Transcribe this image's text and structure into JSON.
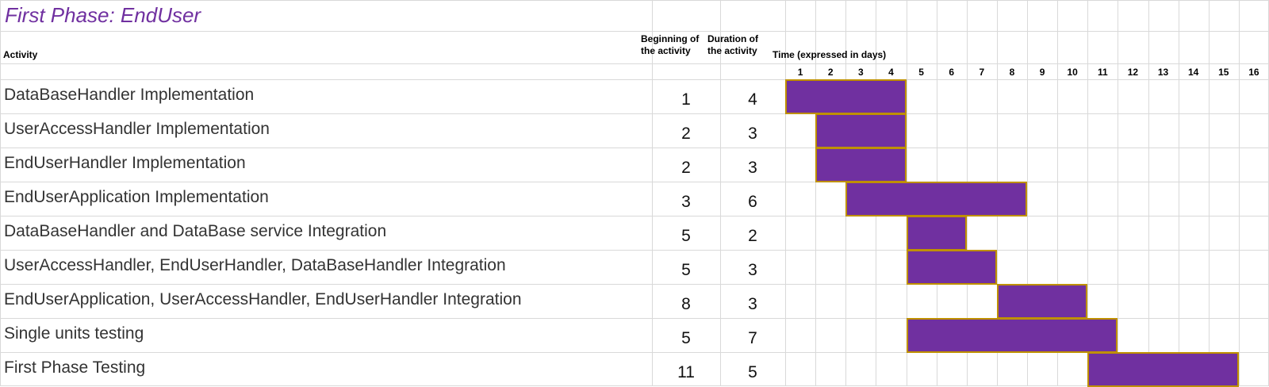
{
  "title": "First Phase: EndUser",
  "headers": {
    "activity": "Activity",
    "beginning_line1": "Beginning of",
    "beginning_line2": "the activity",
    "duration_line1": "Duration of",
    "duration_line2": "the activity",
    "time": "Time (expressed in days)"
  },
  "colors": {
    "bar_fill": "#7030a0",
    "bar_border": "#bf9000",
    "title": "#7030a0"
  },
  "chart_data": {
    "type": "table",
    "x": [
      "1",
      "2",
      "3",
      "4",
      "5",
      "6",
      "7",
      "8",
      "9",
      "10",
      "11",
      "12",
      "13",
      "14",
      "15",
      "16"
    ],
    "rows": [
      {
        "activity": "DataBaseHandler Implementation",
        "start": 1,
        "duration": 4
      },
      {
        "activity": "UserAccessHandler Implementation",
        "start": 2,
        "duration": 3
      },
      {
        "activity": "EndUserHandler Implementation",
        "start": 2,
        "duration": 3
      },
      {
        "activity": "EndUserApplication Implementation",
        "start": 3,
        "duration": 6
      },
      {
        "activity": "DataBaseHandler and DataBase service Integration",
        "start": 5,
        "duration": 2
      },
      {
        "activity": "UserAccessHandler, EndUserHandler, DataBaseHandler Integration",
        "start": 5,
        "duration": 3
      },
      {
        "activity": "EndUserApplication, UserAccessHandler, EndUserHandler Integration",
        "start": 8,
        "duration": 3
      },
      {
        "activity": "Single units testing",
        "start": 5,
        "duration": 7
      },
      {
        "activity": "First Phase Testing",
        "start": 11,
        "duration": 5
      }
    ]
  }
}
